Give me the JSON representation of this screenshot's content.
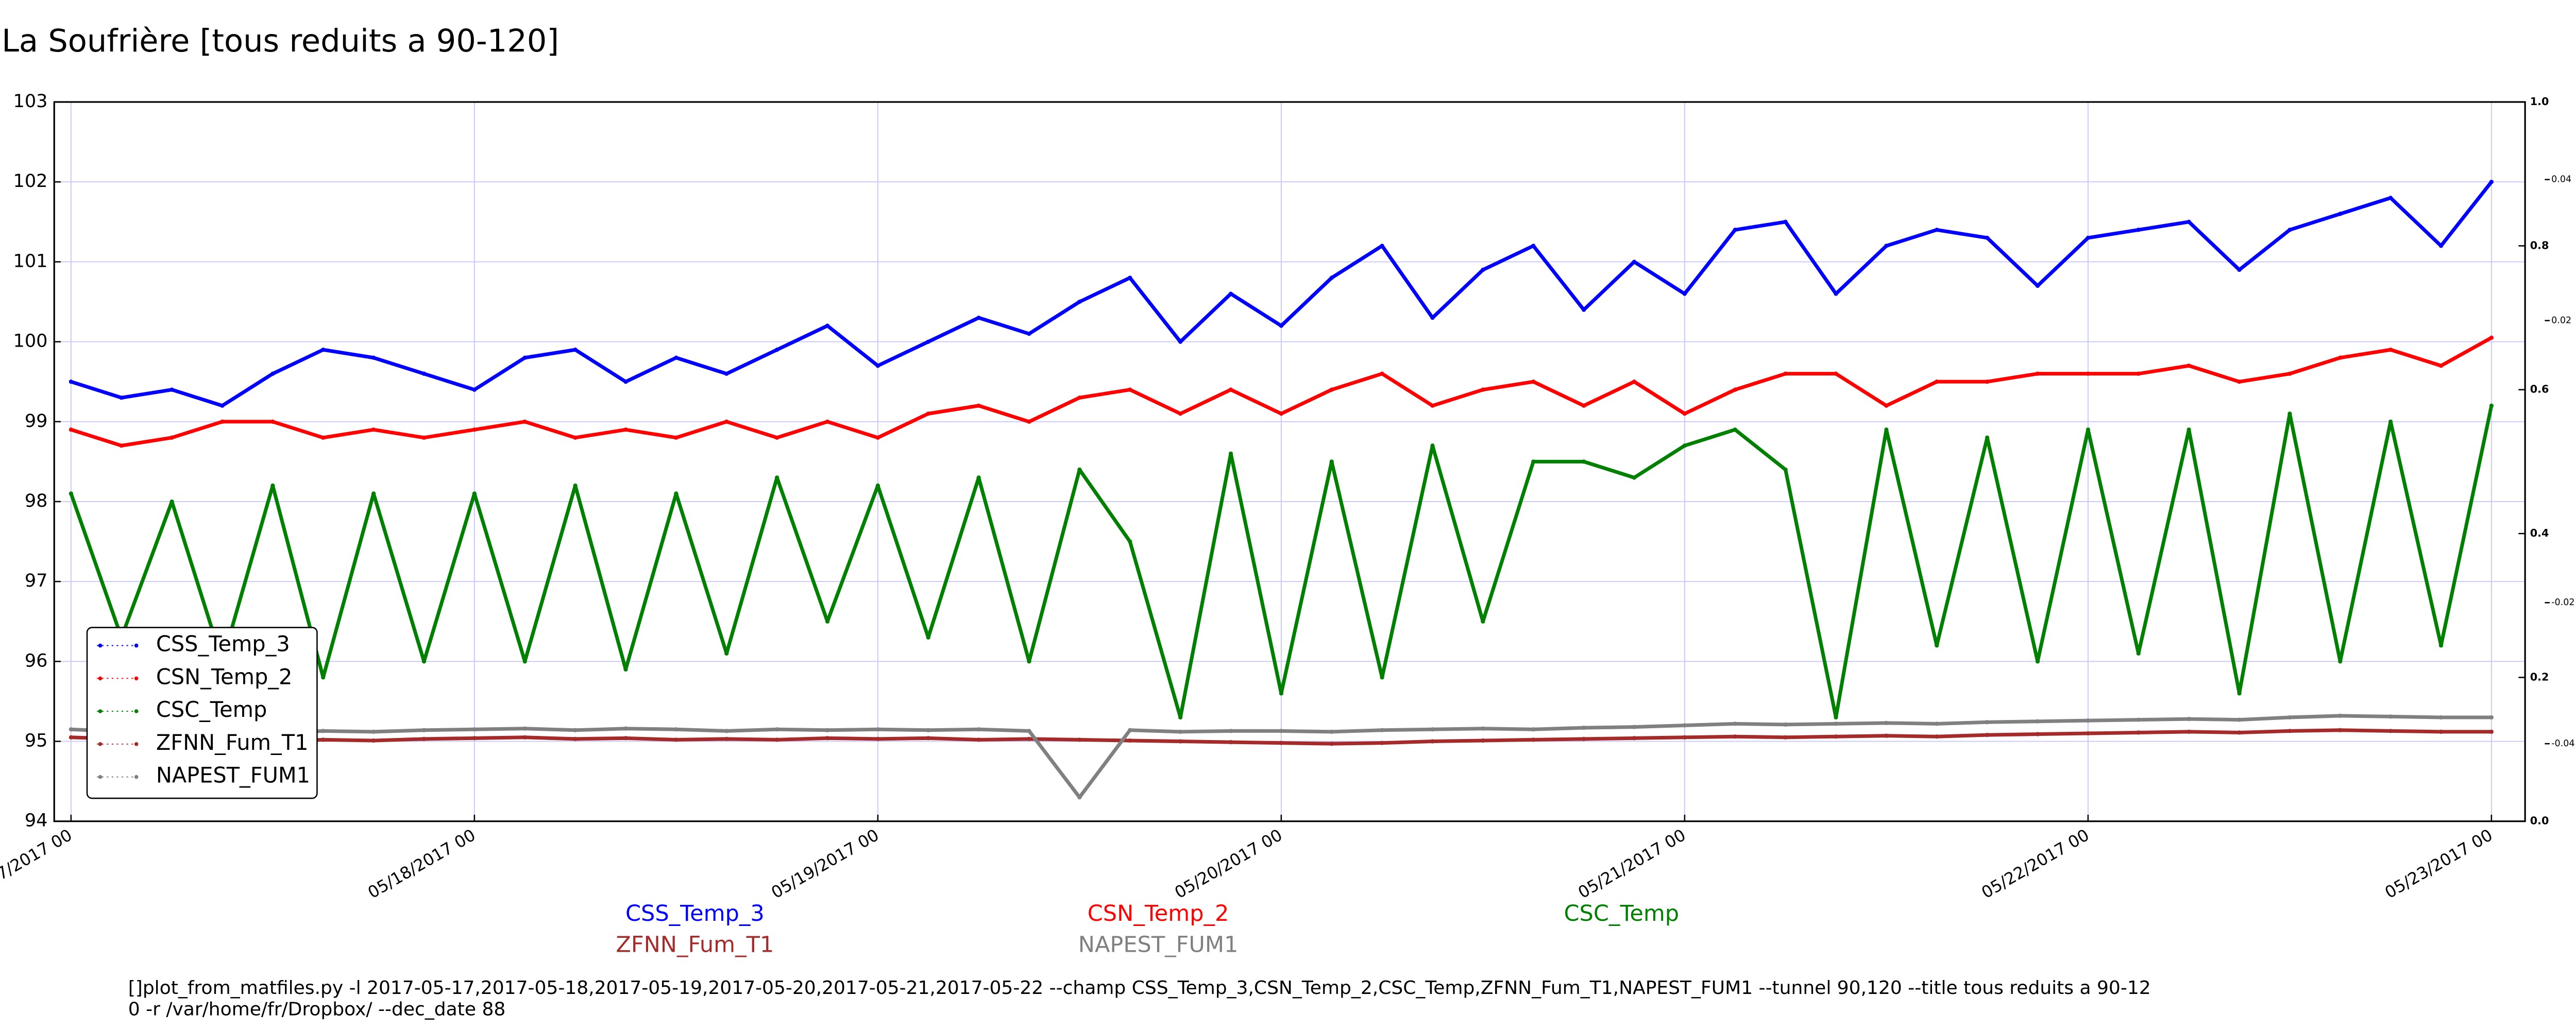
{
  "chart_data": {
    "type": "line",
    "title": "La Soufrière [tous reduits a 90-120]",
    "x": [
      "2017-05-17 00",
      "2017-05-17 03",
      "2017-05-17 06",
      "2017-05-17 09",
      "2017-05-17 12",
      "2017-05-17 15",
      "2017-05-17 18",
      "2017-05-17 21",
      "2017-05-18 00",
      "2017-05-18 03",
      "2017-05-18 06",
      "2017-05-18 09",
      "2017-05-18 12",
      "2017-05-18 15",
      "2017-05-18 18",
      "2017-05-18 21",
      "2017-05-19 00",
      "2017-05-19 03",
      "2017-05-19 06",
      "2017-05-19 09",
      "2017-05-19 12",
      "2017-05-19 15",
      "2017-05-19 18",
      "2017-05-19 21",
      "2017-05-20 00",
      "2017-05-20 03",
      "2017-05-20 06",
      "2017-05-20 09",
      "2017-05-20 12",
      "2017-05-20 15",
      "2017-05-20 18",
      "2017-05-20 21",
      "2017-05-21 00",
      "2017-05-21 03",
      "2017-05-21 06",
      "2017-05-21 09",
      "2017-05-21 12",
      "2017-05-21 15",
      "2017-05-21 18",
      "2017-05-21 21",
      "2017-05-22 00",
      "2017-05-22 03",
      "2017-05-22 06",
      "2017-05-22 09",
      "2017-05-22 12",
      "2017-05-22 15",
      "2017-05-22 18",
      "2017-05-22 21",
      "2017-05-23 00"
    ],
    "series": [
      {
        "name": "CSS_Temp_3",
        "color": "#0000ff",
        "values": [
          99.5,
          99.3,
          99.4,
          99.2,
          99.6,
          99.9,
          99.8,
          99.6,
          99.4,
          99.8,
          99.9,
          99.5,
          99.8,
          99.6,
          99.9,
          100.2,
          99.7,
          100.0,
          100.3,
          100.1,
          100.5,
          100.8,
          100.0,
          100.6,
          100.2,
          100.8,
          101.2,
          100.3,
          100.9,
          101.2,
          100.4,
          101.0,
          100.6,
          101.4,
          101.5,
          100.6,
          101.2,
          101.4,
          101.3,
          100.7,
          101.3,
          101.4,
          101.5,
          100.9,
          101.4,
          101.6,
          101.8,
          101.2,
          102.0
        ]
      },
      {
        "name": "CSN_Temp_2",
        "color": "#ff0000",
        "values": [
          98.9,
          98.7,
          98.8,
          99.0,
          99.0,
          98.8,
          98.9,
          98.8,
          98.9,
          99.0,
          98.8,
          98.9,
          98.8,
          99.0,
          98.8,
          99.0,
          98.8,
          99.1,
          99.2,
          99.0,
          99.3,
          99.4,
          99.1,
          99.4,
          99.1,
          99.4,
          99.6,
          99.2,
          99.4,
          99.5,
          99.2,
          99.5,
          99.1,
          99.4,
          99.6,
          99.6,
          99.2,
          99.5,
          99.5,
          99.6,
          99.6,
          99.6,
          99.7,
          99.5,
          99.6,
          99.8,
          99.9,
          99.7,
          100.05
        ]
      },
      {
        "name": "CSC_Temp",
        "color": "#008000",
        "values": [
          98.1,
          96.3,
          98.0,
          96.0,
          98.2,
          95.8,
          98.1,
          96.0,
          98.1,
          96.0,
          98.2,
          95.9,
          98.1,
          96.1,
          98.3,
          96.5,
          98.2,
          96.3,
          98.3,
          96.0,
          98.4,
          97.5,
          95.3,
          98.6,
          95.6,
          98.5,
          95.8,
          98.7,
          96.5,
          98.5,
          98.5,
          98.3,
          98.7,
          98.9,
          98.4,
          95.3,
          98.9,
          96.2,
          98.8,
          96.0,
          98.9,
          96.1,
          98.9,
          95.6,
          99.1,
          96.0,
          99.0,
          96.2,
          99.2
        ]
      },
      {
        "name": "ZFNN_Fum_T1",
        "color": "#a52a2a",
        "values": [
          95.05,
          95.03,
          95.02,
          95.03,
          95.0,
          95.02,
          95.01,
          95.03,
          95.04,
          95.05,
          95.03,
          95.04,
          95.02,
          95.03,
          95.02,
          95.04,
          95.03,
          95.04,
          95.02,
          95.03,
          95.02,
          95.01,
          95.0,
          94.99,
          94.98,
          94.97,
          94.98,
          95.0,
          95.01,
          95.02,
          95.03,
          95.04,
          95.05,
          95.06,
          95.05,
          95.06,
          95.07,
          95.06,
          95.08,
          95.09,
          95.1,
          95.11,
          95.12,
          95.11,
          95.13,
          95.14,
          95.13,
          95.12,
          95.12
        ]
      },
      {
        "name": "NAPEST_FUM1",
        "color": "#808080",
        "values": [
          95.15,
          95.12,
          95.1,
          95.12,
          95.1,
          95.13,
          95.12,
          95.14,
          95.15,
          95.16,
          95.14,
          95.16,
          95.15,
          95.13,
          95.15,
          95.14,
          95.15,
          95.14,
          95.15,
          95.13,
          94.3,
          95.14,
          95.12,
          95.13,
          95.13,
          95.12,
          95.14,
          95.15,
          95.16,
          95.15,
          95.17,
          95.18,
          95.2,
          95.22,
          95.21,
          95.22,
          95.23,
          95.22,
          95.24,
          95.25,
          95.26,
          95.27,
          95.28,
          95.27,
          95.3,
          95.32,
          95.31,
          95.3,
          95.3
        ]
      }
    ],
    "xlim": [
      "2017-05-16 23",
      "2017-05-23 02"
    ],
    "xticks": [
      {
        "value": "2017-05-17 00",
        "label": "05/17/2017 00"
      },
      {
        "value": "2017-05-18 00",
        "label": "05/18/2017 00"
      },
      {
        "value": "2017-05-19 00",
        "label": "05/19/2017 00"
      },
      {
        "value": "2017-05-20 00",
        "label": "05/20/2017 00"
      },
      {
        "value": "2017-05-21 00",
        "label": "05/21/2017 00"
      },
      {
        "value": "2017-05-22 00",
        "label": "05/22/2017 00"
      },
      {
        "value": "2017-05-23 00",
        "label": "05/23/2017 00"
      }
    ],
    "ylim": [
      94,
      103
    ],
    "yticks": [
      94,
      95,
      96,
      97,
      98,
      99,
      100,
      101,
      102,
      103
    ],
    "y2lim": [
      0,
      1
    ],
    "y2ticks": [
      {
        "value": 0,
        "label": "0.0"
      },
      0.2,
      0.4,
      0.6,
      0.8,
      {
        "value": 1,
        "label": "1.0"
      }
    ],
    "y3lim": [
      -0.051,
      0.051
    ],
    "y3ticks": [
      0.04,
      0.02,
      -0.02,
      -0.04
    ],
    "grid": true,
    "legend": "lower left",
    "footer": [
      "[]plot_from_matfiles.py -l 2017-05-17,2017-05-18,2017-05-19,2017-05-20,2017-05-21,2017-05-22 --champ CSS_Temp_3,CSN_Temp_2,CSC_Temp,ZFNN_Fum_T1,NAPEST_FUM1 --tunnel 90,120 --title tous reduits a 90-12",
      "0 -r /var/home/fr/Dropbox/ --dec_date 88"
    ]
  }
}
